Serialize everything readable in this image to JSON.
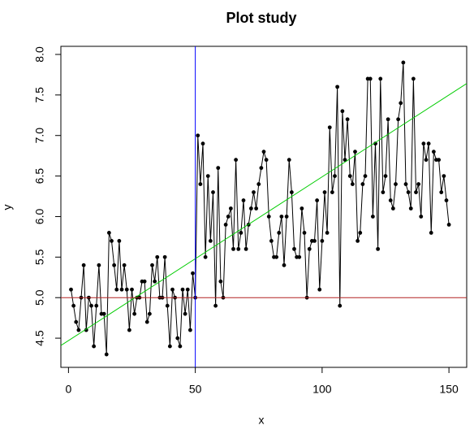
{
  "chart_data": {
    "type": "scatter-line",
    "title": "Plot study",
    "x_label": "x",
    "y_label": "y",
    "x": [
      1,
      2,
      3,
      4,
      5,
      6,
      7,
      8,
      9,
      10,
      11,
      12,
      13,
      14,
      15,
      16,
      17,
      18,
      19,
      20,
      21,
      22,
      23,
      24,
      25,
      26,
      27,
      28,
      29,
      30,
      31,
      32,
      33,
      34,
      35,
      36,
      37,
      38,
      39,
      40,
      41,
      42,
      43,
      44,
      45,
      46,
      47,
      48,
      49,
      50,
      51,
      52,
      53,
      54,
      55,
      56,
      57,
      58,
      59,
      60,
      61,
      62,
      63,
      64,
      65,
      66,
      67,
      68,
      69,
      70,
      71,
      72,
      73,
      74,
      75,
      76,
      77,
      78,
      79,
      80,
      81,
      82,
      83,
      84,
      85,
      86,
      87,
      88,
      89,
      90,
      91,
      92,
      93,
      94,
      95,
      96,
      97,
      98,
      99,
      100,
      101,
      102,
      103,
      104,
      105,
      106,
      107,
      108,
      109,
      110,
      111,
      112,
      113,
      114,
      115,
      116,
      117,
      118,
      119,
      120,
      121,
      122,
      123,
      124,
      125,
      126,
      127,
      128,
      129,
      130,
      131,
      132,
      133,
      134,
      135,
      136,
      137,
      138,
      139,
      140,
      141,
      142,
      143,
      144,
      145,
      146,
      147,
      148,
      149,
      150
    ],
    "values": [
      5.1,
      4.9,
      4.7,
      4.6,
      5.0,
      5.4,
      4.6,
      5.0,
      4.9,
      4.4,
      4.9,
      5.4,
      4.8,
      4.8,
      4.3,
      5.8,
      5.7,
      5.4,
      5.1,
      5.7,
      5.1,
      5.4,
      5.1,
      4.6,
      5.1,
      4.8,
      5.0,
      5.0,
      5.2,
      5.2,
      4.7,
      4.8,
      5.4,
      5.2,
      5.5,
      5.0,
      5.0,
      5.5,
      4.9,
      4.4,
      5.1,
      5.0,
      4.5,
      4.4,
      5.1,
      4.8,
      5.1,
      4.6,
      5.3,
      5.0,
      7.0,
      6.4,
      6.9,
      5.5,
      6.5,
      5.7,
      6.3,
      4.9,
      6.6,
      5.2,
      5.0,
      5.9,
      6.0,
      6.1,
      5.6,
      6.7,
      5.6,
      5.8,
      6.2,
      5.6,
      5.9,
      6.1,
      6.3,
      6.1,
      6.4,
      6.6,
      6.8,
      6.7,
      6.0,
      5.7,
      5.5,
      5.5,
      5.8,
      6.0,
      5.4,
      6.0,
      6.7,
      6.3,
      5.6,
      5.5,
      5.5,
      6.1,
      5.8,
      5.0,
      5.6,
      5.7,
      5.7,
      6.2,
      5.1,
      5.7,
      6.3,
      5.8,
      7.1,
      6.3,
      6.5,
      7.6,
      4.9,
      7.3,
      6.7,
      7.2,
      6.5,
      6.4,
      6.8,
      5.7,
      5.8,
      6.4,
      6.5,
      7.7,
      7.7,
      6.0,
      6.9,
      5.6,
      7.7,
      6.3,
      6.5,
      7.2,
      6.2,
      6.1,
      6.4,
      7.2,
      7.4,
      7.9,
      6.4,
      6.3,
      6.1,
      7.7,
      6.3,
      6.4,
      6.0,
      6.9,
      6.7,
      6.9,
      5.8,
      6.8,
      6.7,
      6.7,
      6.3,
      6.5,
      6.2,
      5.9
    ],
    "color": "#000000",
    "xlim": [
      -3,
      157
    ],
    "ylim": [
      4.14,
      8.1
    ],
    "xticks": [
      0,
      50,
      100,
      150
    ],
    "yticks": [
      {
        "value": 4.5,
        "label": "4.5"
      },
      {
        "value": 5.0,
        "label": "5.0"
      },
      {
        "value": 5.5,
        "label": "5.5"
      },
      {
        "value": 6.0,
        "label": "6.0"
      },
      {
        "value": 6.5,
        "label": "6.5"
      },
      {
        "value": 7.0,
        "label": "7.0"
      },
      {
        "value": 7.5,
        "label": "7.5"
      },
      {
        "value": 8.0,
        "label": "8.0"
      }
    ],
    "vline": {
      "x": 50,
      "color": "#0000ff"
    },
    "hline": {
      "y": 5,
      "color": "#b22222"
    },
    "abline": {
      "intercept": 4.47,
      "slope": 0.0202,
      "color": "#00cc00"
    }
  }
}
